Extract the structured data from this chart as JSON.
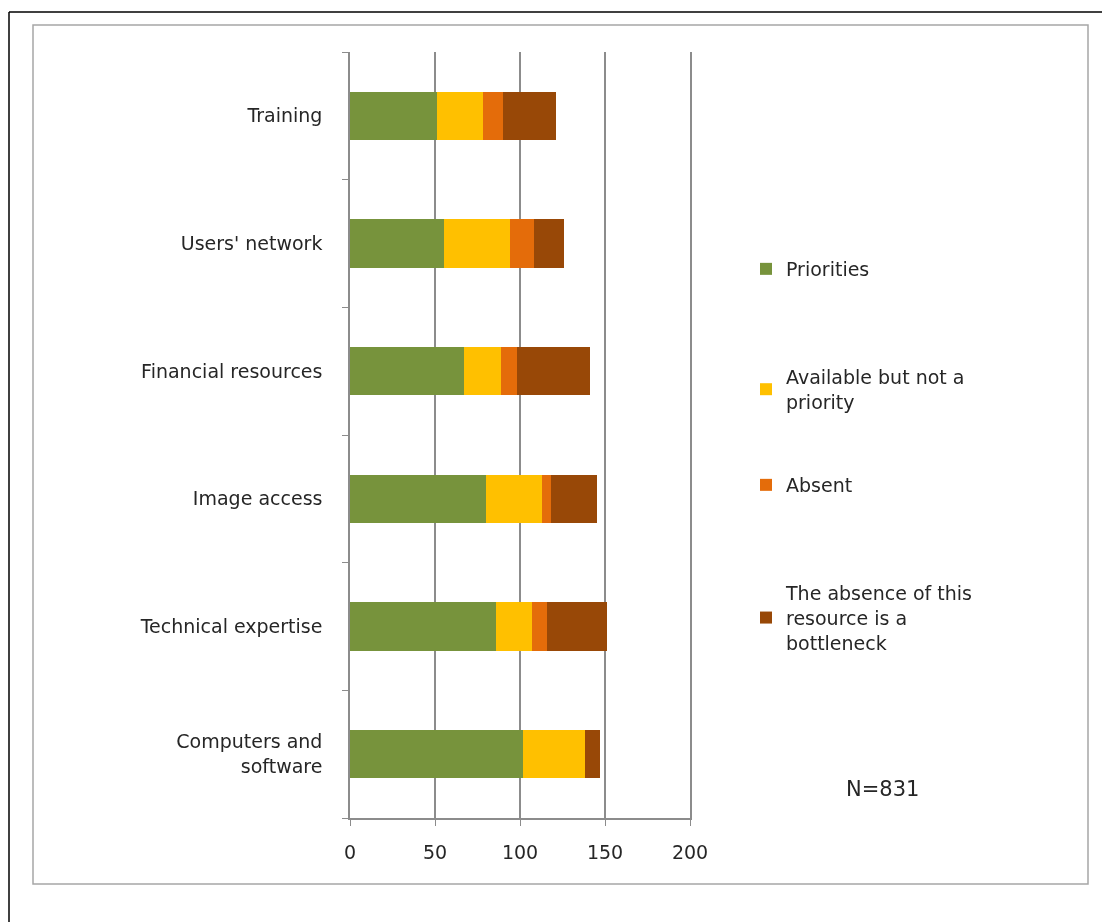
{
  "chart_data": {
    "type": "bar",
    "orientation": "horizontal",
    "stacked": true,
    "categories": [
      "Training",
      "Users' network",
      "Financial resources",
      "Image access",
      "Technical expertise",
      "Computers and software"
    ],
    "series": [
      {
        "name": "Priorities",
        "color": "#77933c",
        "values": [
          51,
          55,
          67,
          80,
          86,
          102
        ]
      },
      {
        "name": "Available but not a priority",
        "color": "#ffc000",
        "values": [
          27,
          39,
          22,
          33,
          21,
          36
        ]
      },
      {
        "name": "Absent",
        "color": "#e46c0a",
        "values": [
          12,
          14,
          9,
          5,
          9,
          0
        ]
      },
      {
        "name": "The absence of this resource is a bottleneck",
        "color": "#984807",
        "values": [
          31,
          18,
          43,
          27,
          35,
          9
        ]
      }
    ],
    "xlim": [
      0,
      200
    ],
    "xticks": [
      0,
      50,
      100,
      150,
      200
    ],
    "grid": "x",
    "legend": "right",
    "annotations": [
      "N=831"
    ]
  }
}
